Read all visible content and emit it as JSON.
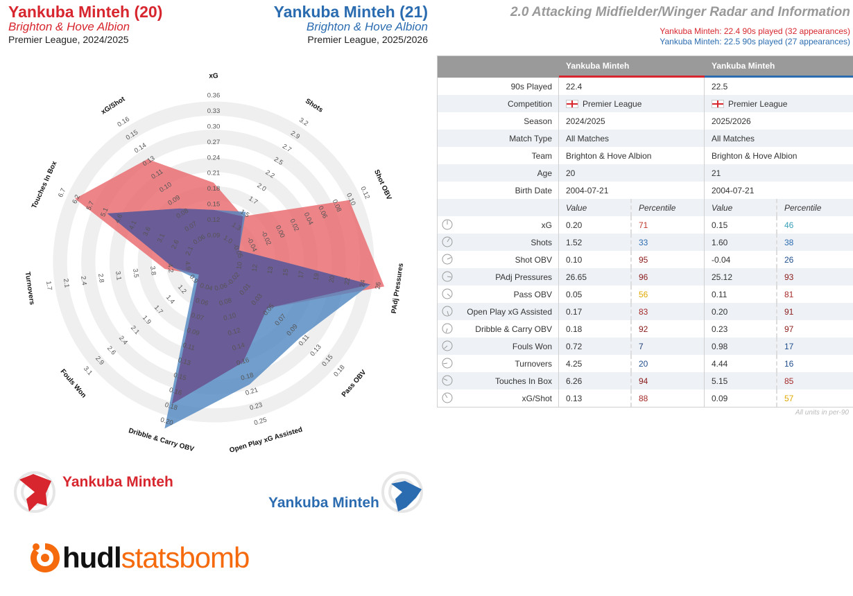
{
  "players": [
    {
      "name": "Yankuba Minteh (20)",
      "team": "Brighton & Hove Albion",
      "competition": "Premier League, 2024/2025",
      "color": "#d7262e",
      "legend": "Yankuba Minteh"
    },
    {
      "name": "Yankuba Minteh (21)",
      "team": "Brighton & Hove Albion",
      "competition": "Premier League, 2025/2026",
      "color": "#2b6cb0",
      "legend": "Yankuba Minteh"
    }
  ],
  "radar_title": "2.0 Attacking Midfielder/Winger Radar and Information",
  "minutes": [
    "Yankuba Minteh: 22.4 90s played (32 appearances)",
    "Yankuba Minteh: 22.5 90s played (27 appearances)"
  ],
  "chart_data": {
    "type": "radar",
    "axes": [
      {
        "label": "xG",
        "ticks": [
          "0.09",
          "0.12",
          "0.15",
          "0.18",
          "0.21",
          "0.24",
          "0.27",
          "0.30",
          "0.33",
          "0.36"
        ]
      },
      {
        "label": "Shots",
        "ticks": [
          "1.0",
          "1.3",
          "1.5",
          "1.7",
          "2.0",
          "2.2",
          "2.5",
          "2.7",
          "2.9",
          "3.2"
        ]
      },
      {
        "label": "Shot OBV",
        "ticks": [
          "-0.05",
          "-0.04",
          "-0.02",
          "0.00",
          "0.02",
          "0.04",
          "0.06",
          "0.08",
          "0.10",
          "0.12"
        ]
      },
      {
        "label": "PAdj Pressures",
        "ticks": [
          "10",
          "12",
          "13",
          "15",
          "17",
          "19",
          "20",
          "22",
          "24",
          "26"
        ]
      },
      {
        "label": "Pass OBV",
        "ticks": [
          "-0.02",
          "0.01",
          "0.03",
          "0.05",
          "0.07",
          "0.09",
          "0.11",
          "0.13",
          "0.15",
          "0.18"
        ]
      },
      {
        "label": "Open Play xG Assisted",
        "ticks": [
          "0.06",
          "0.08",
          "0.10",
          "0.12",
          "0.14",
          "0.16",
          "0.18",
          "0.21",
          "0.23",
          "0.25"
        ]
      },
      {
        "label": "Dribble & Carry OBV",
        "ticks": [
          "0.04",
          "0.06",
          "0.07",
          "0.09",
          "0.11",
          "0.13",
          "0.15",
          "0.16",
          "0.18",
          "0.20"
        ]
      },
      {
        "label": "Fouls Won",
        "ticks": [
          "0.9",
          "1.2",
          "1.4",
          "1.7",
          "1.9",
          "2.1",
          "2.4",
          "2.6",
          "2.9",
          "3.1"
        ]
      },
      {
        "label": "Turnovers",
        "ticks": [
          "4.9",
          "4.2",
          "3.8",
          "3.5",
          "3.1",
          "2.8",
          "2.4",
          "2.1",
          "1.7"
        ]
      },
      {
        "label": "Touches In Box",
        "ticks": [
          "2.1",
          "2.6",
          "3.1",
          "3.6",
          "4.1",
          "4.6",
          "5.1",
          "5.7",
          "6.2",
          "6.7"
        ]
      },
      {
        "label": "xG/Shot",
        "ticks": [
          "0.06",
          "0.07",
          "0.08",
          "0.09",
          "0.10",
          "0.11",
          "0.13",
          "0.14",
          "0.15",
          "0.16"
        ]
      }
    ],
    "series": [
      {
        "name": "Yankuba Minteh",
        "season": "2024/2025",
        "color": "#e8656a",
        "values": [
          0.2,
          1.52,
          0.1,
          26.65,
          0.05,
          0.17,
          0.18,
          0.72,
          4.25,
          6.26,
          0.13
        ]
      },
      {
        "name": "Yankuba Minteh",
        "season": "2025/2026",
        "color": "#4f86c0",
        "values": [
          0.15,
          1.6,
          -0.04,
          25.12,
          0.11,
          0.2,
          0.23,
          0.98,
          4.44,
          5.15,
          0.09
        ]
      }
    ]
  },
  "table": {
    "headers": {
      "p1": "Yankuba Minteh",
      "p2": "Yankuba Minteh"
    },
    "info": [
      {
        "label": "90s Played",
        "p1": "22.4",
        "p2": "22.5"
      },
      {
        "label": "Competition",
        "p1": "Premier League",
        "p2": "Premier League",
        "flag": true
      },
      {
        "label": "Season",
        "p1": "2024/2025",
        "p2": "2025/2026"
      },
      {
        "label": "Match Type",
        "p1": "All Matches",
        "p2": "All Matches"
      },
      {
        "label": "Team",
        "p1": "Brighton & Hove Albion",
        "p2": "Brighton & Hove Albion"
      },
      {
        "label": "Age",
        "p1": "20",
        "p2": "21"
      },
      {
        "label": "Birth Date",
        "p1": "2004-07-21",
        "p2": "2004-07-21"
      }
    ],
    "sub_headers": {
      "value": "Value",
      "percentile": "Percentile"
    },
    "metrics": [
      {
        "label": "xG",
        "v1": "0.20",
        "p1": "71",
        "c1": "#c0392b",
        "v2": "0.15",
        "p2": "46",
        "c2": "#3aa0b8"
      },
      {
        "label": "Shots",
        "v1": "1.52",
        "p1": "33",
        "c1": "#2b6cb0",
        "v2": "1.60",
        "p2": "38",
        "c2": "#2b6cb0"
      },
      {
        "label": "Shot OBV",
        "v1": "0.10",
        "p1": "95",
        "c1": "#8b1a1a",
        "v2": "-0.04",
        "p2": "26",
        "c2": "#1f4e8c"
      },
      {
        "label": "PAdj Pressures",
        "v1": "26.65",
        "p1": "96",
        "c1": "#8b1a1a",
        "v2": "25.12",
        "p2": "93",
        "c2": "#8b1a1a"
      },
      {
        "label": "Pass OBV",
        "v1": "0.05",
        "p1": "56",
        "c1": "#e0a800",
        "v2": "0.11",
        "p2": "81",
        "c2": "#a52a2a"
      },
      {
        "label": "Open Play xG Assisted",
        "v1": "0.17",
        "p1": "83",
        "c1": "#a52a2a",
        "v2": "0.20",
        "p2": "91",
        "c2": "#8b1a1a"
      },
      {
        "label": "Dribble & Carry OBV",
        "v1": "0.18",
        "p1": "92",
        "c1": "#8b1a1a",
        "v2": "0.23",
        "p2": "97",
        "c2": "#8b1a1a"
      },
      {
        "label": "Fouls Won",
        "v1": "0.72",
        "p1": "7",
        "c1": "#1f3f78",
        "v2": "0.98",
        "p2": "17",
        "c2": "#1f4e8c"
      },
      {
        "label": "Turnovers",
        "v1": "4.25",
        "p1": "20",
        "c1": "#1f4e8c",
        "v2": "4.44",
        "p2": "16",
        "c2": "#1f4e8c"
      },
      {
        "label": "Touches In Box",
        "v1": "6.26",
        "p1": "94",
        "c1": "#8b1a1a",
        "v2": "5.15",
        "p2": "85",
        "c2": "#a52a2a"
      },
      {
        "label": "xG/Shot",
        "v1": "0.13",
        "p1": "88",
        "c1": "#a52a2a",
        "v2": "0.09",
        "p2": "57",
        "c2": "#e0a800"
      }
    ],
    "units_note": "All units in per-90"
  },
  "logo": {
    "part1": "hudl",
    "part2": "statsbomb",
    "color": "#f56a0d"
  }
}
